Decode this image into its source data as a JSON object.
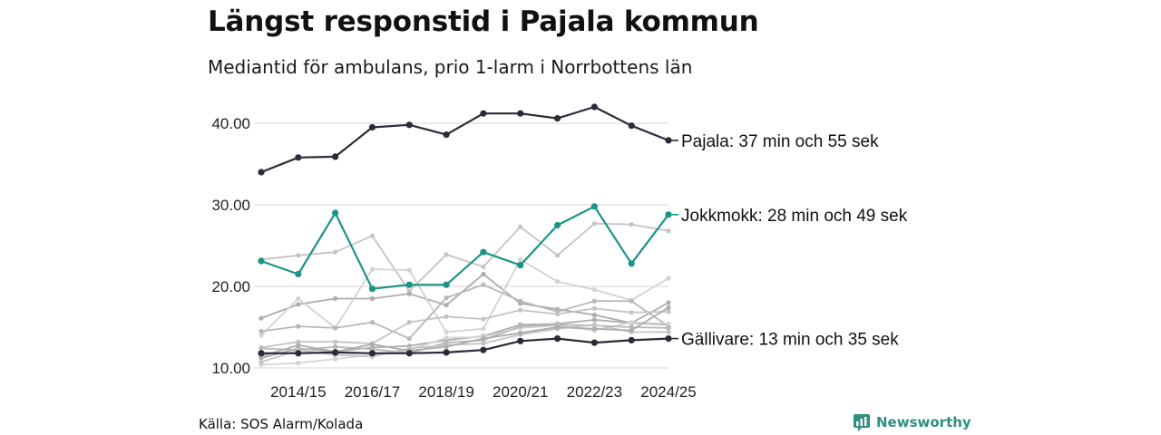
{
  "title": "Längst responstid i Pajala kommun",
  "subtitle": "Mediantid för ambulans, prio 1-larm i Norrbottens län",
  "source": "Källa: SOS Alarm/Kolada",
  "brand": "Newsworthy",
  "colors": {
    "highlight_dark": "#2b2b38",
    "highlight_teal": "#1a9485",
    "background_lines": [
      "#c4c4c4",
      "#adadad",
      "#d3d3d3",
      "#b8b8b8"
    ],
    "grid": "#dddddd",
    "brand": "#2f8f80"
  },
  "chart_data": {
    "type": "line",
    "title": "Längst responstid i Pajala kommun",
    "xlabel": "",
    "ylabel": "",
    "ylim": [
      10,
      42
    ],
    "yticks": [
      "10.00",
      "20.00",
      "30.00",
      "40.00"
    ],
    "ytick_values": [
      10,
      20,
      30,
      40
    ],
    "categories": [
      "2013/14",
      "2014/15",
      "2015/16",
      "2016/17",
      "2017/18",
      "2018/19",
      "2019/20",
      "2020/21",
      "2021/22",
      "2022/23",
      "2023/24",
      "2024/25"
    ],
    "xtick_labels": [
      "2014/15",
      "2016/17",
      "2018/19",
      "2020/21",
      "2022/23",
      "2024/25"
    ],
    "highlighted": [
      {
        "name": "Pajala",
        "label": "Pajala: 37 min och 55 sek",
        "color": "#2b2b38",
        "values": [
          34.0,
          35.8,
          35.9,
          39.5,
          39.8,
          38.6,
          41.2,
          41.2,
          40.6,
          42.0,
          39.7,
          37.9
        ]
      },
      {
        "name": "Jokkmokk",
        "label": "Jokkmokk: 28 min och 49 sek",
        "color": "#1a9485",
        "values": [
          23.1,
          21.5,
          29.0,
          19.7,
          20.2,
          20.2,
          24.2,
          22.6,
          27.5,
          29.8,
          22.8,
          28.8
        ]
      },
      {
        "name": "Gällivare",
        "label": "Gällivare: 13 min och 35 sek",
        "color": "#2b2b38",
        "values": [
          11.8,
          11.8,
          11.9,
          11.8,
          11.8,
          11.9,
          12.2,
          13.3,
          13.6,
          13.1,
          13.4,
          13.6
        ]
      }
    ],
    "background_series": [
      {
        "values": [
          23.3,
          23.8,
          24.2,
          26.2,
          19.4,
          23.9,
          22.4,
          27.3,
          23.8,
          27.7,
          27.6,
          26.8
        ]
      },
      {
        "values": [
          16.1,
          17.8,
          18.5,
          18.5,
          19.1,
          17.7,
          21.5,
          17.9,
          17.2,
          16.5,
          15.5,
          18.0
        ]
      },
      {
        "values": [
          14.0,
          18.5,
          14.9,
          22.1,
          22.0,
          14.4,
          14.8,
          23.3,
          20.6,
          19.6,
          18.3,
          21.0
        ]
      },
      {
        "values": [
          14.5,
          15.1,
          14.9,
          15.6,
          13.6,
          18.6,
          20.2,
          18.2,
          16.9,
          18.2,
          18.2,
          15.1
        ]
      },
      {
        "values": [
          12.5,
          13.2,
          13.2,
          13.0,
          15.6,
          16.3,
          16.0,
          17.1,
          16.6,
          17.3,
          16.8,
          16.9
        ]
      },
      {
        "values": [
          11.2,
          12.4,
          12.0,
          12.5,
          12.7,
          13.4,
          13.9,
          15.3,
          15.4,
          15.9,
          15.5,
          15.3
        ]
      },
      {
        "values": [
          10.4,
          10.6,
          11.1,
          11.6,
          12.2,
          13.7,
          13.8,
          14.9,
          15.2,
          14.6,
          15.6,
          15.4
        ]
      },
      {
        "values": [
          12.4,
          12.2,
          12.6,
          12.3,
          11.8,
          13.1,
          13.4,
          15.1,
          15.3,
          15.2,
          15.0,
          14.9
        ]
      },
      {
        "values": [
          10.7,
          12.2,
          11.6,
          11.4,
          12.4,
          12.8,
          13.0,
          14.1,
          14.8,
          15.3,
          14.4,
          14.4
        ]
      },
      {
        "values": [
          11.4,
          12.8,
          12.0,
          12.9,
          12.1,
          12.6,
          13.6,
          14.3,
          15.0,
          14.8,
          14.6,
          17.4
        ]
      }
    ]
  }
}
